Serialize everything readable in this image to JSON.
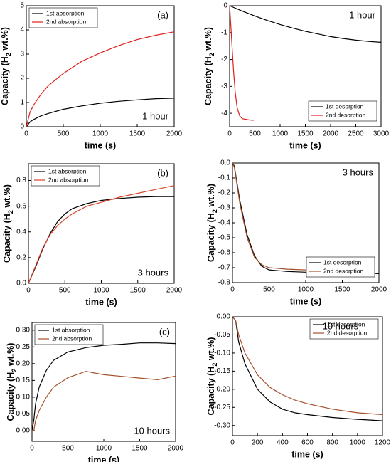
{
  "chart_data": [
    {
      "type": "line",
      "xlabel": "time (s)",
      "ylabel": [
        "Capacity (H",
        "2",
        " wt.%)"
      ],
      "xlim": [
        0,
        2000
      ],
      "xticks": [
        0,
        500,
        1000,
        1500,
        2000
      ],
      "ylim": [
        0,
        5
      ],
      "yticks": [
        0,
        1,
        2,
        3,
        4,
        5
      ],
      "legend": "upper left",
      "annotations": [
        {
          "text": "(a)",
          "position": "upper right"
        },
        {
          "text": "1 hour",
          "position": "lower right"
        }
      ],
      "series": [
        {
          "name": "1st absorption",
          "color": "#000000",
          "x": [
            0,
            50,
            100,
            200,
            300,
            500,
            750,
            1000,
            1250,
            1500,
            1750,
            2000
          ],
          "values": [
            0,
            0.2,
            0.3,
            0.45,
            0.55,
            0.72,
            0.86,
            0.97,
            1.05,
            1.11,
            1.16,
            1.18
          ]
        },
        {
          "name": "2nd absorption",
          "color": "#e0201b",
          "x": [
            0,
            50,
            100,
            200,
            300,
            500,
            750,
            1000,
            1250,
            1500,
            1750,
            2000
          ],
          "values": [
            0,
            0.6,
            0.9,
            1.35,
            1.7,
            2.2,
            2.7,
            3.05,
            3.35,
            3.6,
            3.78,
            3.92
          ]
        }
      ]
    },
    {
      "type": "line",
      "xlabel": "time (s)",
      "ylabel": [
        "Capacity (H",
        "2",
        " wt.%)"
      ],
      "xlim": [
        0,
        3000
      ],
      "xticks": [
        0,
        500,
        1000,
        1500,
        2000,
        2500,
        3000
      ],
      "ylim": [
        -4.5,
        0
      ],
      "yticks": [
        0,
        -1,
        -2,
        -3,
        -4
      ],
      "legend": "lower right",
      "annotations": [
        {
          "text": "1 hour",
          "position": "upper right"
        }
      ],
      "series": [
        {
          "name": "1st desorption",
          "color": "#000000",
          "x": [
            0,
            250,
            500,
            750,
            1000,
            1250,
            1500,
            1750,
            2000,
            2250,
            2500,
            2750,
            3000
          ],
          "values": [
            0,
            -0.2,
            -0.38,
            -0.55,
            -0.7,
            -0.83,
            -0.95,
            -1.05,
            -1.15,
            -1.22,
            -1.28,
            -1.33,
            -1.36
          ]
        },
        {
          "name": "2nd desorption",
          "color": "#e0201b",
          "x": [
            0,
            20,
            50,
            80,
            110,
            150,
            200,
            250,
            300,
            400,
            480
          ],
          "values": [
            0,
            -0.6,
            -1.6,
            -2.5,
            -3.2,
            -3.8,
            -4.1,
            -4.2,
            -4.22,
            -4.25,
            -4.26
          ]
        }
      ]
    },
    {
      "type": "line",
      "xlabel": "time (s)",
      "ylabel": [
        "Capacity (H",
        "2",
        " wt.%)"
      ],
      "xlim": [
        0,
        2000
      ],
      "xticks": [
        0,
        500,
        1000,
        1500,
        2000
      ],
      "ylim": [
        0,
        0.93
      ],
      "yticks": [
        {
          "value": 0,
          "label": "0.0"
        },
        0.2,
        0.4,
        0.6,
        0.8
      ],
      "legend": "upper left",
      "annotations": [
        {
          "text": "(b)",
          "position": "upper right"
        },
        {
          "text": "3 hours",
          "position": "lower right"
        }
      ],
      "series": [
        {
          "name": "1st absorption",
          "color": "#000000",
          "x": [
            0,
            100,
            200,
            300,
            400,
            500,
            600,
            800,
            1000,
            1250,
            1500,
            1750,
            2000
          ],
          "values": [
            0,
            0.13,
            0.27,
            0.39,
            0.48,
            0.54,
            0.58,
            0.62,
            0.645,
            0.66,
            0.67,
            0.675,
            0.675
          ]
        },
        {
          "name": "2nd absorption",
          "color": "#d9442b",
          "x": [
            0,
            100,
            200,
            300,
            400,
            500,
            600,
            800,
            1000,
            1250,
            1500,
            1750,
            2000
          ],
          "values": [
            0,
            0.14,
            0.28,
            0.38,
            0.45,
            0.5,
            0.54,
            0.6,
            0.63,
            0.67,
            0.7,
            0.73,
            0.76
          ]
        }
      ]
    },
    {
      "type": "line",
      "xlabel": "time (s)",
      "ylabel": [
        "Capacity (H",
        "2",
        " wt.%)"
      ],
      "xlim": [
        0,
        2000
      ],
      "xticks": [
        0,
        500,
        1000,
        1500,
        2000
      ],
      "ylim": [
        -0.8,
        0
      ],
      "yticks": [
        {
          "value": 0,
          "label": "0.0"
        },
        -0.1,
        -0.2,
        -0.3,
        -0.4,
        -0.5,
        -0.6,
        -0.7,
        -0.8
      ],
      "legend": "lower right",
      "annotations": [
        {
          "text": "3 hours",
          "position": "upper right"
        }
      ],
      "series": [
        {
          "name": "1st desorption",
          "color": "#000000",
          "x": [
            0,
            25,
            100,
            200,
            300,
            400,
            500,
            750,
            1000,
            1250,
            1500,
            1750,
            2000
          ],
          "values": [
            0,
            -0.02,
            -0.25,
            -0.48,
            -0.62,
            -0.69,
            -0.715,
            -0.725,
            -0.73,
            -0.73,
            -0.735,
            -0.735,
            -0.74
          ]
        },
        {
          "name": "2nd desorption",
          "color": "#a5502a",
          "x": [
            0,
            25,
            100,
            200,
            300,
            400,
            500,
            750,
            1000
          ],
          "values": [
            0,
            -0.03,
            -0.27,
            -0.5,
            -0.63,
            -0.68,
            -0.7,
            -0.71,
            -0.715
          ]
        }
      ]
    },
    {
      "type": "line",
      "xlabel": "time (s)",
      "ylabel": [
        "Capacity (H",
        "2",
        " wt.%)"
      ],
      "xlim": [
        0,
        2000
      ],
      "xticks": [
        0,
        500,
        1000,
        1500,
        2000
      ],
      "ylim": [
        -0.032,
        0.323
      ],
      "yticks": [
        {
          "value": 0,
          "label": "0.00"
        },
        {
          "value": 0.05,
          "label": "0.05"
        },
        {
          "value": 0.1,
          "label": "0.10"
        },
        {
          "value": 0.15,
          "label": "0.15"
        },
        {
          "value": 0.2,
          "label": "0.20"
        },
        {
          "value": 0.25,
          "label": "0.25"
        },
        {
          "value": 0.3,
          "label": "0.30"
        }
      ],
      "legend": "upper left",
      "annotations": [
        {
          "text": "(c)",
          "position": "upper right"
        },
        {
          "text": "10 hours",
          "position": "lower right"
        }
      ],
      "series": [
        {
          "name": "1st absorption",
          "color": "#000000",
          "x": [
            0,
            25,
            50,
            100,
            200,
            300,
            500,
            750,
            1000,
            1250,
            1500,
            1750,
            2000
          ],
          "values": [
            0,
            0.03,
            0.08,
            0.13,
            0.18,
            0.21,
            0.235,
            0.248,
            0.255,
            0.258,
            0.262,
            0.262,
            0.26
          ]
        },
        {
          "name": "2nd absorption",
          "color": "#a5502a",
          "x": [
            0,
            25,
            50,
            100,
            200,
            300,
            500,
            750,
            1000,
            1250,
            1500,
            1750,
            2000
          ],
          "values": [
            0,
            0.0,
            0.03,
            0.06,
            0.1,
            0.13,
            0.158,
            0.177,
            0.167,
            0.162,
            0.157,
            0.152,
            0.163
          ]
        }
      ]
    },
    {
      "type": "line",
      "xlabel": "time (s)",
      "ylabel": [
        "Capacity (H",
        "2",
        " wt.%)"
      ],
      "xlim": [
        0,
        1200
      ],
      "xticks": [
        0,
        200,
        400,
        600,
        800,
        1000,
        1200
      ],
      "ylim": [
        -0.328,
        0
      ],
      "yticks": [
        {
          "value": 0,
          "label": "0.00"
        },
        {
          "value": -0.05,
          "label": "-0.05"
        },
        {
          "value": -0.1,
          "label": "-0.10"
        },
        {
          "value": -0.15,
          "label": "-0.15"
        },
        {
          "value": -0.2,
          "label": "-0.20"
        },
        {
          "value": -0.25,
          "label": "-0.25"
        },
        {
          "value": -0.3,
          "label": "-0.30"
        }
      ],
      "legend": "upper right",
      "annotations": [
        {
          "text": "10 hours",
          "position": "upper left"
        }
      ],
      "series": [
        {
          "name": "1st desorption",
          "color": "#000000",
          "x": [
            0,
            25,
            50,
            100,
            200,
            300,
            400,
            500,
            600,
            800,
            1000,
            1200
          ],
          "values": [
            0,
            -0.01,
            -0.07,
            -0.13,
            -0.2,
            -0.235,
            -0.255,
            -0.265,
            -0.27,
            -0.278,
            -0.283,
            -0.287
          ]
        },
        {
          "name": "2nd desorption",
          "color": "#a5502a",
          "x": [
            0,
            25,
            50,
            100,
            200,
            300,
            400,
            500,
            600,
            800,
            1000,
            1200
          ],
          "values": [
            0,
            -0.01,
            -0.05,
            -0.1,
            -0.16,
            -0.195,
            -0.215,
            -0.23,
            -0.24,
            -0.255,
            -0.265,
            -0.27
          ]
        }
      ]
    }
  ]
}
